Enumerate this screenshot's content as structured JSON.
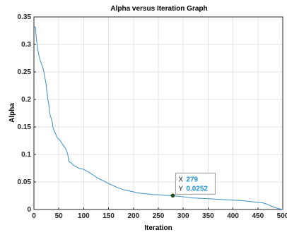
{
  "chart_data": {
    "type": "line",
    "title": "Alpha versus Iteration Graph",
    "xlabel": "Iteration",
    "ylabel": "Alpha",
    "xlim": [
      0,
      500
    ],
    "ylim": [
      0,
      0.35
    ],
    "xticks": [
      0,
      50,
      100,
      150,
      200,
      250,
      300,
      350,
      400,
      450,
      500
    ],
    "yticks": [
      0,
      0.05,
      0.1,
      0.15,
      0.2,
      0.25,
      0.3,
      0.35
    ],
    "ytick_labels": [
      "0",
      "0.05",
      "0.1",
      "0.15",
      "0.2",
      "0.25",
      "0.3",
      "0.35"
    ],
    "grid": true,
    "series_color": "#3a8fc7",
    "series": [
      {
        "x": [
          1,
          3,
          5,
          7,
          10,
          13,
          15,
          18,
          20,
          22,
          24,
          26,
          28,
          30,
          31,
          33,
          35,
          37,
          38,
          40,
          42,
          45,
          47,
          50,
          53,
          55,
          58,
          60,
          63,
          65,
          68,
          70,
          72,
          75,
          80,
          85,
          90,
          95,
          100,
          110,
          120,
          130,
          140,
          150,
          160,
          170,
          180,
          190,
          200,
          210,
          220,
          230,
          240,
          250,
          260,
          270,
          279,
          290,
          300,
          320,
          340,
          360,
          380,
          400,
          420,
          440,
          460,
          470,
          480,
          490,
          500
        ],
        "y": [
          0.332,
          0.331,
          0.31,
          0.295,
          0.28,
          0.27,
          0.265,
          0.258,
          0.25,
          0.24,
          0.23,
          0.215,
          0.2,
          0.19,
          0.18,
          0.17,
          0.165,
          0.158,
          0.15,
          0.145,
          0.14,
          0.135,
          0.13,
          0.128,
          0.125,
          0.122,
          0.118,
          0.115,
          0.112,
          0.108,
          0.1,
          0.088,
          0.086,
          0.085,
          0.08,
          0.078,
          0.075,
          0.074,
          0.073,
          0.068,
          0.062,
          0.056,
          0.052,
          0.047,
          0.043,
          0.039,
          0.036,
          0.034,
          0.032,
          0.03,
          0.029,
          0.028,
          0.027,
          0.027,
          0.026,
          0.0255,
          0.0252,
          0.024,
          0.023,
          0.021,
          0.02,
          0.019,
          0.018,
          0.017,
          0.016,
          0.014,
          0.012,
          0.009,
          0.005,
          0.002,
          0.0
        ]
      }
    ],
    "datatip": {
      "x_label": "X",
      "x_value": "279",
      "y_label": "Y",
      "y_value": "0.0252",
      "x": 279,
      "y": 0.0252,
      "value_color": "#1f8fd6"
    }
  }
}
